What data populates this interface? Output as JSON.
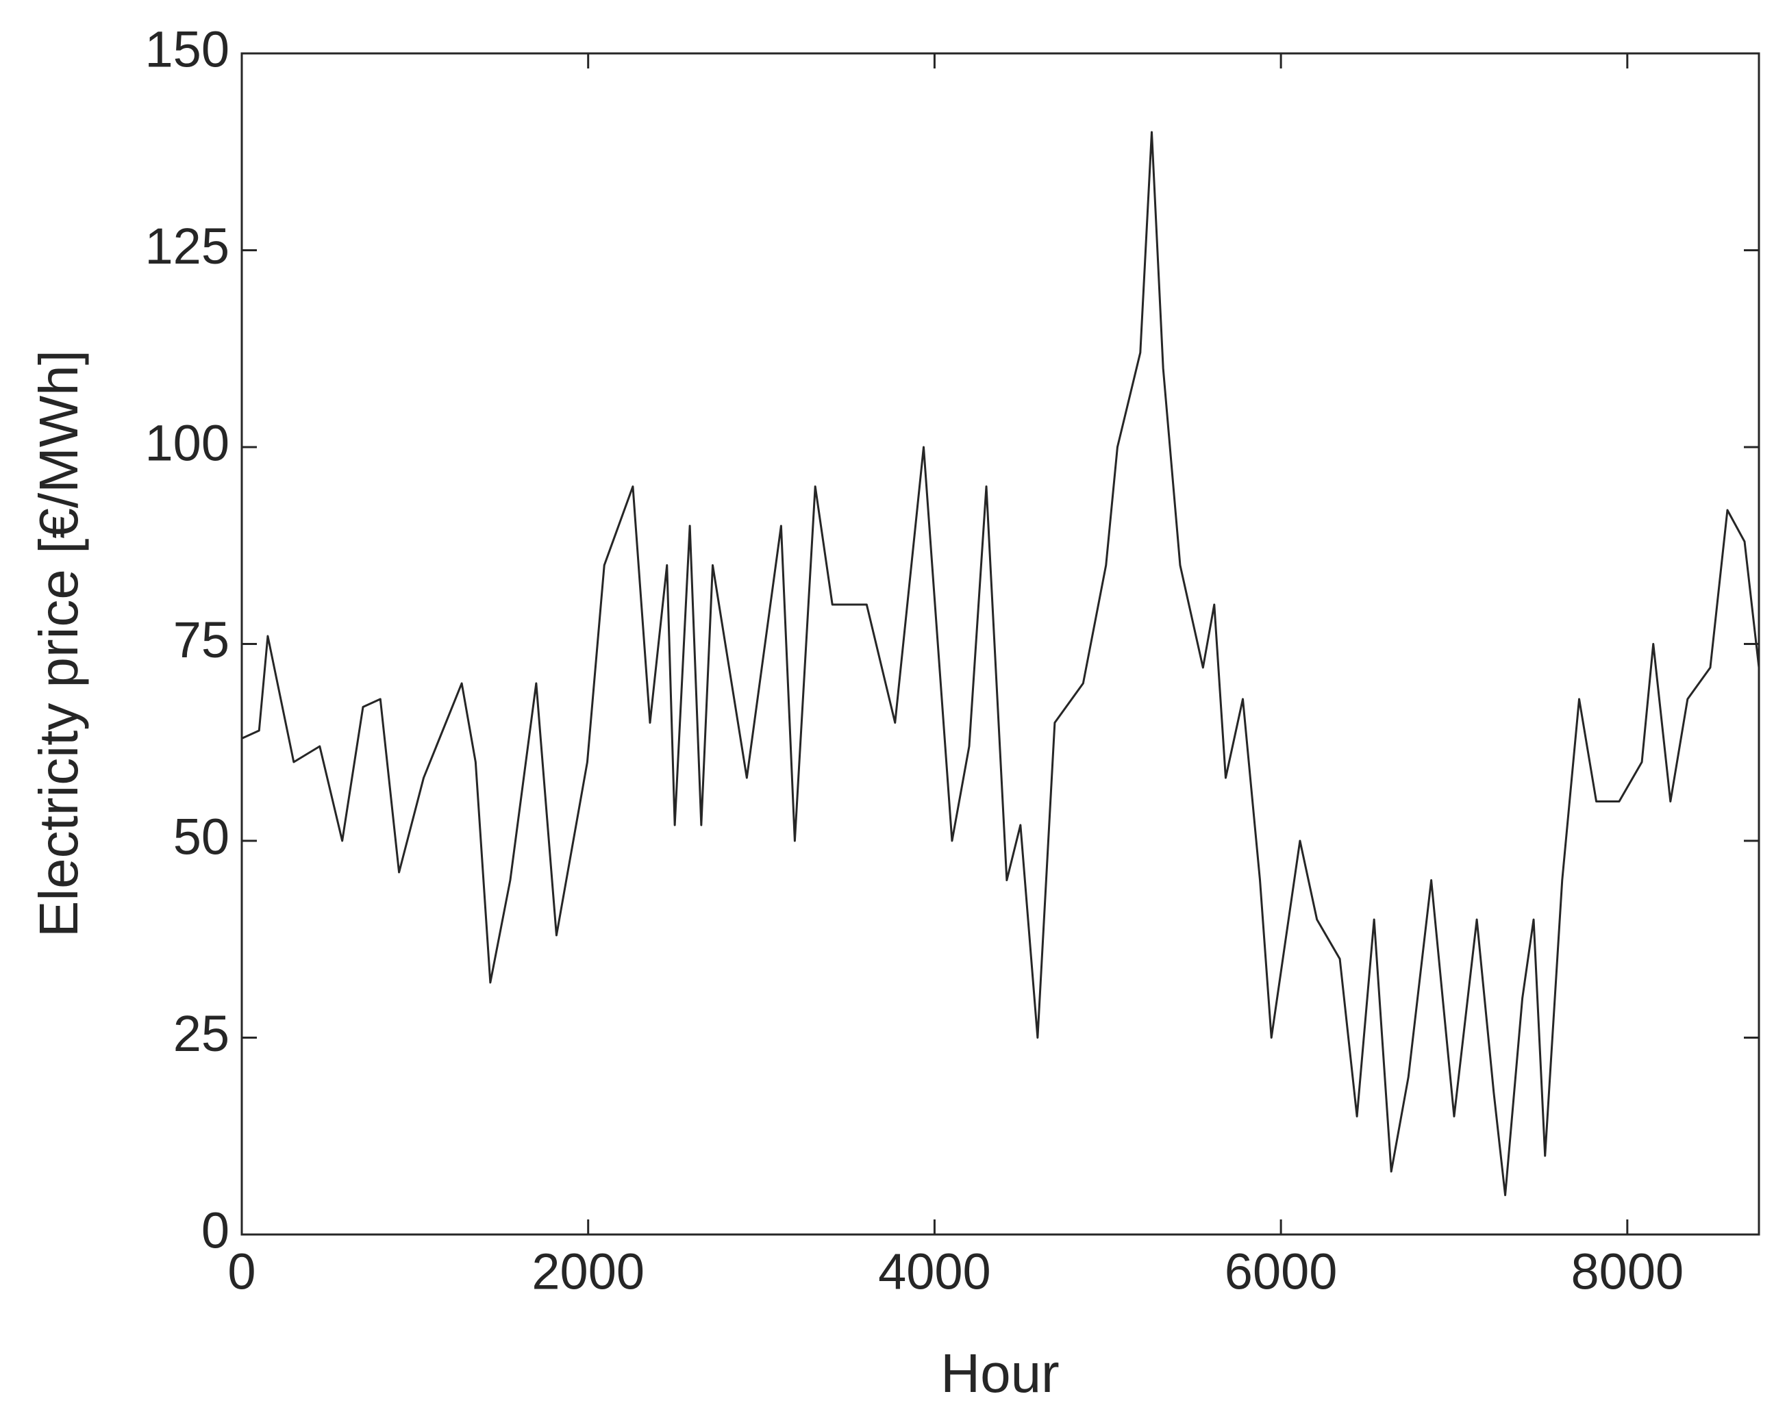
{
  "chart_data": {
    "type": "line",
    "x_label": "Hour",
    "y_label": "Electricity price [€/MWh]",
    "xlim": [
      0,
      8760
    ],
    "ylim": [
      0,
      150
    ],
    "xticks": [
      0,
      2000,
      4000,
      6000,
      8000
    ],
    "yticks": [
      0,
      25,
      50,
      75,
      100,
      125,
      150
    ],
    "grid": false,
    "x": [
      0,
      100,
      150,
      300,
      450,
      580,
      700,
      800,
      908,
      1050,
      1270,
      1350,
      1435,
      1550,
      1700,
      1817,
      1995,
      2093,
      2258,
      2357,
      2455,
      2500,
      2587,
      2653,
      2719,
      2916,
      3114,
      3193,
      3311,
      3410,
      3608,
      3772,
      3937,
      4101,
      4200,
      4299,
      4417,
      4496,
      4595,
      4694,
      4858,
      4990,
      5056,
      5188,
      5254,
      5320,
      5418,
      5550,
      5615,
      5681,
      5780,
      5879,
      5945,
      6011,
      6110,
      6208,
      6340,
      6439,
      6538,
      6637,
      6736,
      6868,
      7000,
      7131,
      7229,
      7295,
      7394,
      7459,
      7525,
      7624,
      7722,
      7821,
      7953,
      8084,
      8150,
      8249,
      8348,
      8479,
      8578,
      8677,
      8760
    ],
    "series": [
      {
        "name": "Electricity price",
        "color": "#262626",
        "values": [
          63,
          64,
          76,
          60,
          62,
          50,
          67,
          68,
          46,
          58,
          70,
          60,
          32,
          45,
          70,
          38,
          60,
          85,
          95,
          65,
          85,
          52,
          90,
          52,
          85,
          58,
          90,
          50,
          95,
          80,
          80,
          65,
          100,
          50,
          62,
          95,
          45,
          52,
          25,
          65,
          70,
          85,
          100,
          112,
          140,
          110,
          85,
          72,
          80,
          58,
          68,
          45,
          25,
          35,
          50,
          40,
          35,
          15,
          40,
          8,
          20,
          45,
          15,
          40,
          18,
          5,
          30,
          40,
          10,
          45,
          68,
          55,
          55,
          60,
          75,
          55,
          68,
          72,
          92,
          88,
          72
        ]
      }
    ]
  }
}
